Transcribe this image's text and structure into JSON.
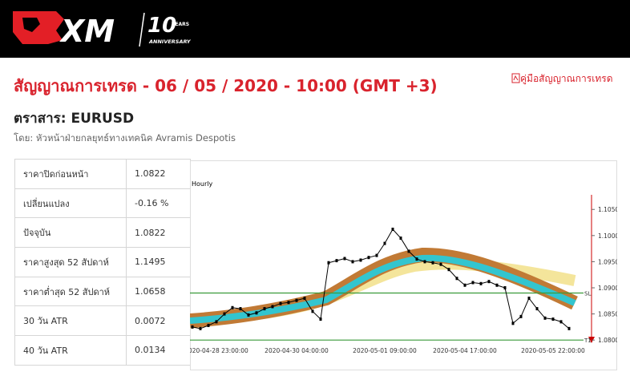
{
  "header": {
    "logo": "XM",
    "anniversary_number": "10",
    "anniversary_years": "YEARS",
    "anniversary_word": "ANNIVERSARY"
  },
  "title": "สัญญาณการเทรด - 06 / 05 / 2020 - 10:00 (GMT +3)",
  "guide_link": "คู่มือสัญญาณการเทรด",
  "instrument": "ตราสาร: EURUSD",
  "author": "โดย: หัวหน้าฝ่ายกลยุทธ์ทางเทคนิค Avramis Despotis",
  "table": {
    "rows": [
      [
        "ราคาปิดก่อนหน้า",
        "1.0822"
      ],
      [
        "เปลี่ยนแปลง",
        "-0.16 %"
      ],
      [
        "ปัจจุบัน",
        "1.0822"
      ],
      [
        "ราคาสูงสุด 52 สัปดาห์",
        "1.1495"
      ],
      [
        "ราคาต่ำสุด 52 สัปดาห์",
        "1.0658"
      ],
      [
        "30 วัน ATR",
        "0.0072"
      ],
      [
        "40 วัน ATR",
        "0.0134"
      ]
    ]
  },
  "chart_data": {
    "type": "line",
    "subtitle": "Hourly",
    "color": "#000000",
    "categories": [
      null,
      null,
      null,
      "2020-04-28 23:00:00",
      null,
      null,
      null,
      null,
      null,
      null,
      null,
      null,
      null,
      "2020-04-30 04:00:00",
      null,
      null,
      null,
      null,
      null,
      null,
      null,
      null,
      null,
      null,
      "2020-05-01 09:00:00",
      null,
      null,
      null,
      null,
      null,
      null,
      null,
      null,
      null,
      "2020-05-04 17:00:00",
      null,
      null,
      null,
      null,
      null,
      null,
      null,
      null,
      null,
      null,
      "2020-05-05 22:00:00",
      null,
      null
    ],
    "values": [
      1.0825,
      1.0822,
      1.0828,
      1.0835,
      1.085,
      1.0862,
      1.086,
      1.0848,
      1.0852,
      1.086,
      1.0864,
      1.087,
      1.0872,
      1.0876,
      1.088,
      1.0855,
      1.084,
      1.0948,
      1.0952,
      1.0956,
      1.095,
      1.0953,
      1.0958,
      1.0962,
      1.0985,
      1.1012,
      1.0995,
      1.097,
      1.0955,
      1.095,
      1.0948,
      1.0945,
      1.0935,
      1.0918,
      1.0905,
      1.091,
      1.0908,
      1.0912,
      1.0905,
      1.09,
      1.0832,
      1.0845,
      1.088,
      1.086,
      1.0842,
      1.084,
      1.0835,
      1.0822
    ],
    "ylim": [
      1.0788,
      1.1101
    ],
    "yticks": [
      {
        "value": 1.08,
        "label": "1.0800"
      },
      {
        "value": 1.085,
        "label": "1.0850"
      },
      {
        "value": 1.09,
        "label": "1.0900"
      },
      {
        "value": 1.095,
        "label": "1.0950"
      },
      {
        "value": 1.1,
        "label": "1.1000"
      },
      {
        "value": 1.105,
        "label": "1.1050"
      }
    ],
    "levels": [
      {
        "label": "SL",
        "value": 1.089,
        "color": "#3a9a3a"
      },
      {
        "label": "T1",
        "value": 1.08,
        "color": "#3a9a3a"
      }
    ]
  }
}
